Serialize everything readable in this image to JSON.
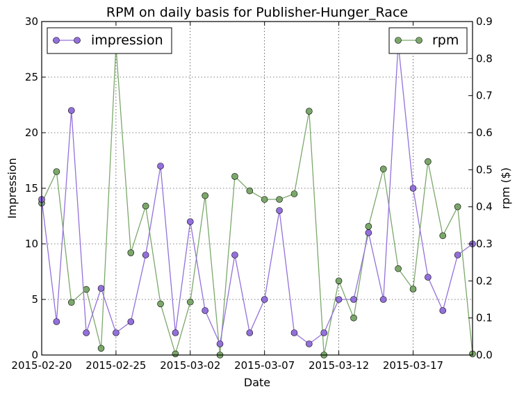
{
  "chart_data": {
    "type": "line",
    "title": "RPM on daily basis for Publisher-Hunger_Race",
    "xlabel": "Date",
    "ylabel_left": "Impression",
    "ylabel_right": "rpm ($)",
    "x_start": "2015-02-20",
    "x_end": "2015-03-21",
    "x_ticks": [
      "2015-02-20",
      "2015-02-25",
      "2015-03-02",
      "2015-03-07",
      "2015-03-12",
      "2015-03-17"
    ],
    "y_left_lim": [
      0,
      30
    ],
    "y_left_ticks": [
      "0",
      "5",
      "10",
      "15",
      "20",
      "25",
      "30"
    ],
    "y_right_lim": [
      0,
      0.9
    ],
    "y_right_ticks": [
      "0.0",
      "0.1",
      "0.2",
      "0.3",
      "0.4",
      "0.5",
      "0.6",
      "0.7",
      "0.8",
      "0.9"
    ],
    "grid": true,
    "legend_left": {
      "placement": "top-left",
      "label": "impression"
    },
    "legend_right": {
      "placement": "top-right",
      "label": "rpm"
    },
    "dates": [
      "2015-02-20",
      "2015-02-21",
      "2015-02-22",
      "2015-02-23",
      "2015-02-24",
      "2015-02-25",
      "2015-02-26",
      "2015-02-27",
      "2015-02-28",
      "2015-03-01",
      "2015-03-02",
      "2015-03-03",
      "2015-03-04",
      "2015-03-05",
      "2015-03-06",
      "2015-03-07",
      "2015-03-08",
      "2015-03-09",
      "2015-03-10",
      "2015-03-11",
      "2015-03-12",
      "2015-03-13",
      "2015-03-14",
      "2015-03-15",
      "2015-03-16",
      "2015-03-17",
      "2015-03-18",
      "2015-03-19",
      "2015-03-20",
      "2015-03-21"
    ],
    "series": [
      {
        "name": "impression",
        "axis": "left",
        "color": "#9370DB",
        "values": [
          14,
          3,
          22,
          2,
          6,
          2,
          3,
          9,
          17,
          2,
          12,
          4,
          1,
          9,
          2,
          5,
          13,
          2,
          1,
          2,
          5,
          5,
          11,
          5,
          28,
          15,
          7,
          4,
          9,
          10
        ]
      },
      {
        "name": "rpm",
        "axis": "right",
        "color": "#7BA86A",
        "values": [
          0.41,
          0.495,
          0.142,
          0.177,
          0.018,
          0.833,
          0.276,
          0.402,
          0.138,
          0.003,
          0.143,
          0.43,
          0.0,
          0.482,
          0.443,
          0.42,
          0.42,
          0.435,
          0.658,
          0.0,
          0.2,
          0.1,
          0.347,
          0.502,
          0.233,
          0.178,
          0.522,
          0.322,
          0.4,
          0.003
        ]
      }
    ]
  }
}
